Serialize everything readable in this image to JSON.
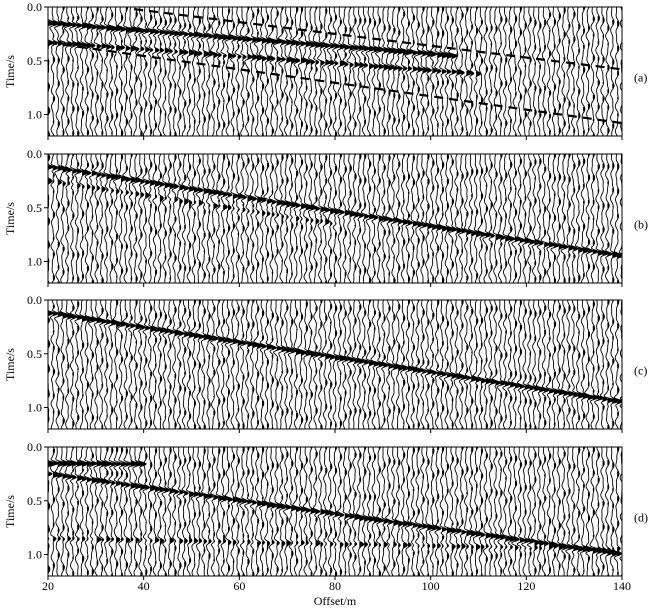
{
  "chart_data": {
    "type": "seismic-wiggle",
    "xlabel": "Offset/m",
    "ylabel": "Time/s",
    "xlim": [
      20,
      140
    ],
    "ylim": [
      0,
      1.2
    ],
    "x_ticks": [
      20,
      40,
      60,
      80,
      100,
      120,
      140
    ],
    "y_ticks": [
      0.0,
      0.5,
      1.0
    ],
    "x_tick_labels": [
      "20",
      "40",
      "60",
      "80",
      "100",
      "120",
      "140"
    ],
    "y_tick_labels": [
      "0.0",
      "0.5",
      "1.0"
    ],
    "trace_count": 118,
    "panels": [
      {
        "tag": "(a)",
        "events": [
          {
            "t0": 0.15,
            "t1": 0.58,
            "end_x": 105,
            "strength": 1.0
          },
          {
            "t0": 0.33,
            "t1": 0.72,
            "end_x": 110,
            "strength": 0.7
          }
        ],
        "guides": [
          {
            "x": [
              38,
              140
            ],
            "t": [
              0.02,
              0.58
            ]
          },
          {
            "x": [
              20,
              140
            ],
            "t": [
              0.33,
              1.08
            ]
          }
        ]
      },
      {
        "tag": "(b)",
        "events": [
          {
            "t0": 0.12,
            "t1": 0.95,
            "end_x": 140,
            "strength": 0.9
          },
          {
            "t0": 0.25,
            "t1": 1.05,
            "end_x": 80,
            "strength": 0.4
          }
        ],
        "guides": []
      },
      {
        "tag": "(c)",
        "events": [
          {
            "t0": 0.12,
            "t1": 0.95,
            "end_x": 140,
            "strength": 1.0
          }
        ],
        "guides": []
      },
      {
        "tag": "(d)",
        "events": [
          {
            "t0": 0.25,
            "t1": 1.0,
            "end_x": 140,
            "strength": 0.9
          },
          {
            "t0": 0.15,
            "t1": 0.2,
            "end_x": 40,
            "strength": 1.0
          },
          {
            "t0": 0.85,
            "t1": 0.95,
            "end_x": 140,
            "strength": 0.4
          }
        ],
        "guides": []
      }
    ]
  }
}
